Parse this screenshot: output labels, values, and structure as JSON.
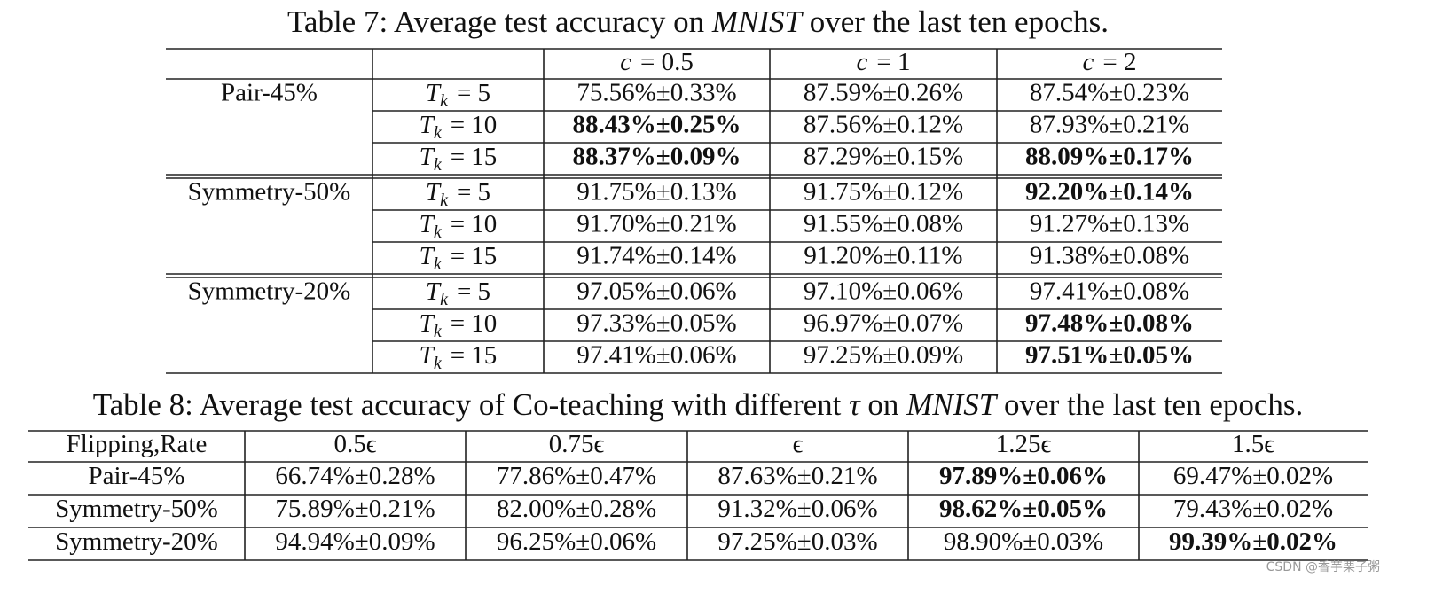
{
  "table7": {
    "title": [
      {
        "text": "Table 7: Average test accuracy on ",
        "italic": false
      },
      {
        "text": "MNIST",
        "italic": true
      },
      {
        "text": " over the last ten epochs.",
        "italic": false
      }
    ],
    "columns": [
      {
        "sym": "c",
        "rest": "= 0.5"
      },
      {
        "sym": "c",
        "rest": "= 1"
      },
      {
        "sym": "c",
        "rest": "= 2"
      }
    ],
    "groups": [
      {
        "label": "Pair-45%",
        "rows": [
          {
            "t": {
              "sym": "T",
              "sub": "k",
              "rest": "= 5"
            },
            "cells": [
              {
                "text": "75.56%±0.33%",
                "bold": false
              },
              {
                "text": "87.59%±0.26%",
                "bold": false
              },
              {
                "text": "87.54%±0.23%",
                "bold": false
              }
            ]
          },
          {
            "t": {
              "sym": "T",
              "sub": "k",
              "rest": "= 10"
            },
            "cells": [
              {
                "text": "88.43%±0.25%",
                "bold": true
              },
              {
                "text": "87.56%±0.12%",
                "bold": false
              },
              {
                "text": "87.93%±0.21%",
                "bold": false
              }
            ]
          },
          {
            "t": {
              "sym": "T",
              "sub": "k",
              "rest": "= 15"
            },
            "cells": [
              {
                "text": "88.37%±0.09%",
                "bold": true
              },
              {
                "text": "87.29%±0.15%",
                "bold": false
              },
              {
                "text": "88.09%±0.17%",
                "bold": true
              }
            ]
          }
        ]
      },
      {
        "label": "Symmetry-50%",
        "rows": [
          {
            "t": {
              "sym": "T",
              "sub": "k",
              "rest": "= 5"
            },
            "cells": [
              {
                "text": "91.75%±0.13%",
                "bold": false
              },
              {
                "text": "91.75%±0.12%",
                "bold": false
              },
              {
                "text": "92.20%±0.14%",
                "bold": true
              }
            ]
          },
          {
            "t": {
              "sym": "T",
              "sub": "k",
              "rest": "= 10"
            },
            "cells": [
              {
                "text": "91.70%±0.21%",
                "bold": false
              },
              {
                "text": "91.55%±0.08%",
                "bold": false
              },
              {
                "text": "91.27%±0.13%",
                "bold": false
              }
            ]
          },
          {
            "t": {
              "sym": "T",
              "sub": "k",
              "rest": "= 15"
            },
            "cells": [
              {
                "text": "91.74%±0.14%",
                "bold": false
              },
              {
                "text": "91.20%±0.11%",
                "bold": false
              },
              {
                "text": "91.38%±0.08%",
                "bold": false
              }
            ]
          }
        ]
      },
      {
        "label": "Symmetry-20%",
        "rows": [
          {
            "t": {
              "sym": "T",
              "sub": "k",
              "rest": "= 5"
            },
            "cells": [
              {
                "text": "97.05%±0.06%",
                "bold": false
              },
              {
                "text": "97.10%±0.06%",
                "bold": false
              },
              {
                "text": "97.41%±0.08%",
                "bold": false
              }
            ]
          },
          {
            "t": {
              "sym": "T",
              "sub": "k",
              "rest": "= 10"
            },
            "cells": [
              {
                "text": "97.33%±0.05%",
                "bold": false
              },
              {
                "text": "96.97%±0.07%",
                "bold": false
              },
              {
                "text": "97.48%±0.08%",
                "bold": true
              }
            ]
          },
          {
            "t": {
              "sym": "T",
              "sub": "k",
              "rest": "= 15"
            },
            "cells": [
              {
                "text": "97.41%±0.06%",
                "bold": false
              },
              {
                "text": "97.25%±0.09%",
                "bold": false
              },
              {
                "text": "97.51%±0.05%",
                "bold": true
              }
            ]
          }
        ]
      }
    ]
  },
  "table8": {
    "title": [
      {
        "text": "Table 8: Average test accuracy of Co-teaching with different ",
        "italic": false
      },
      {
        "text": "τ",
        "italic": true
      },
      {
        "text": " on ",
        "italic": false
      },
      {
        "text": "MNIST",
        "italic": true
      },
      {
        "text": " over the last ten epochs.",
        "italic": false
      }
    ],
    "header": [
      "Flipping,Rate",
      "0.5ϵ",
      "0.75ϵ",
      "ϵ",
      "1.25ϵ",
      "1.5ϵ"
    ],
    "rows": [
      {
        "label": "Pair-45%",
        "cells": [
          {
            "text": "66.74%±0.28%",
            "bold": false
          },
          {
            "text": "77.86%±0.47%",
            "bold": false
          },
          {
            "text": "87.63%±0.21%",
            "bold": false
          },
          {
            "text": "97.89%±0.06%",
            "bold": true
          },
          {
            "text": "69.47%±0.02%",
            "bold": false
          }
        ]
      },
      {
        "label": "Symmetry-50%",
        "cells": [
          {
            "text": "75.89%±0.21%",
            "bold": false
          },
          {
            "text": "82.00%±0.28%",
            "bold": false
          },
          {
            "text": "91.32%±0.06%",
            "bold": false
          },
          {
            "text": "98.62%±0.05%",
            "bold": true
          },
          {
            "text": "79.43%±0.02%",
            "bold": false
          }
        ]
      },
      {
        "label": "Symmetry-20%",
        "cells": [
          {
            "text": "94.94%±0.09%",
            "bold": false
          },
          {
            "text": "96.25%±0.06%",
            "bold": false
          },
          {
            "text": "97.25%±0.03%",
            "bold": false
          },
          {
            "text": "98.90%±0.03%",
            "bold": false
          },
          {
            "text": "99.39%±0.02%",
            "bold": true
          }
        ]
      }
    ]
  },
  "watermark": "CSDN @香芋栗子粥"
}
